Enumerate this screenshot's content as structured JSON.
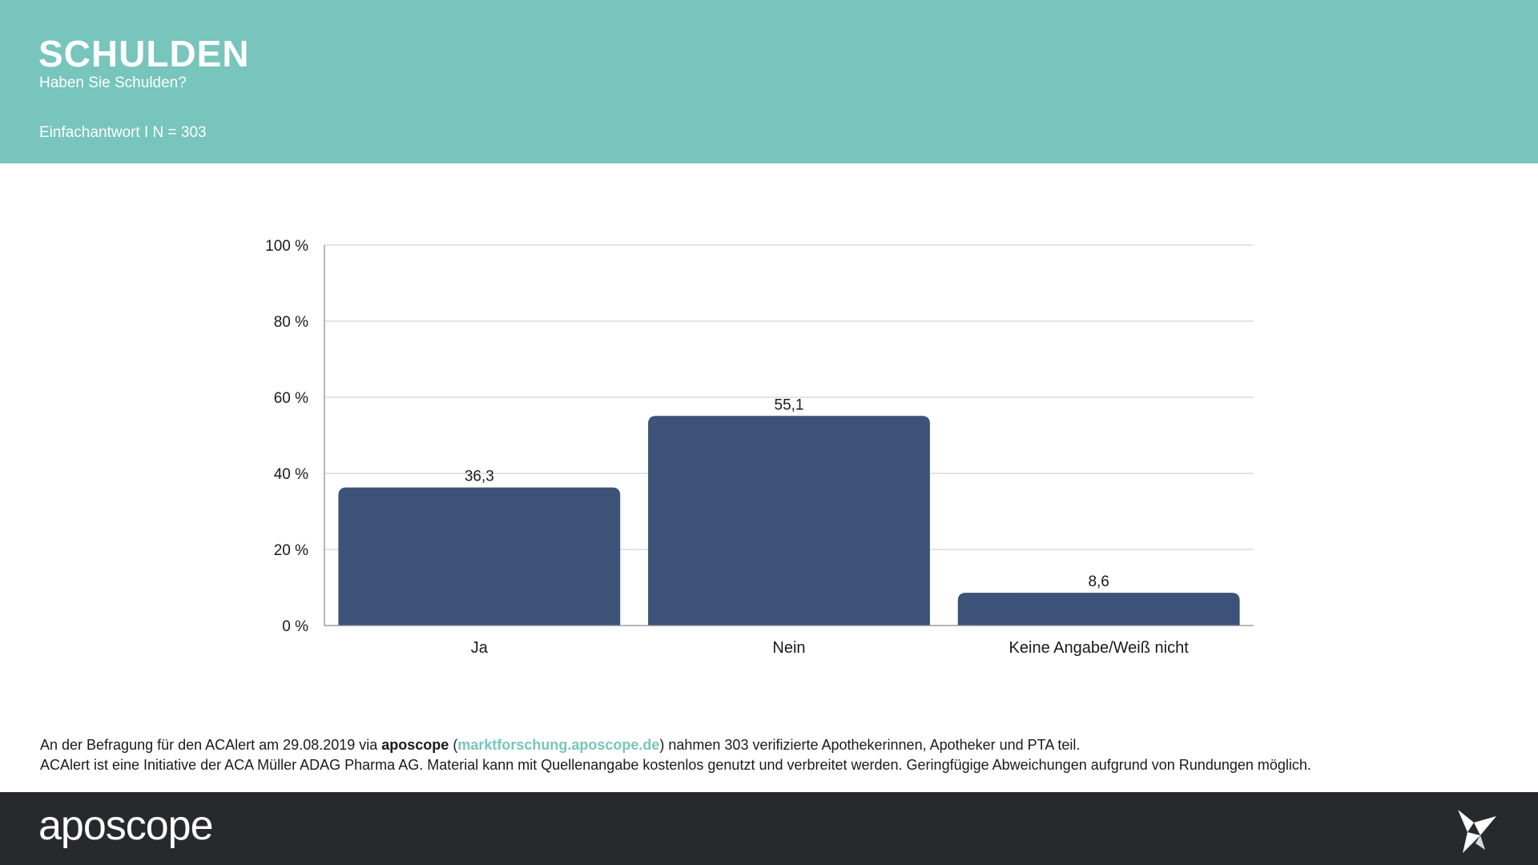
{
  "header": {
    "title": "SCHULDEN",
    "subtitle": "Haben Sie Schulden?",
    "meta": "Einfachantwort I N = 303"
  },
  "chart_data": {
    "type": "bar",
    "categories": [
      "Ja",
      "Nein",
      "Keine Angabe/Weiß nicht"
    ],
    "values": [
      36.3,
      55.1,
      8.6
    ],
    "value_labels": [
      "36,3",
      "55,1",
      "8,6"
    ],
    "ylim": [
      0,
      100
    ],
    "yticks": [
      "0 %",
      "20 %",
      "40 %",
      "60 %",
      "80 %",
      "100 %"
    ],
    "ytick_values": [
      0,
      20,
      40,
      60,
      80,
      100
    ],
    "bar_color": "#3d5278",
    "grid": true
  },
  "footnote": {
    "line1_prefix": "An der Befragung für den ACAlert am 29.08.2019 via ",
    "line1_brand": "aposcope",
    "line1_open": " (",
    "line1_link": "marktforschung.aposcope.de",
    "line1_suffix": ") nahmen 303 verifizierte Apothekerinnen, Apotheker und PTA teil.",
    "line2": "ACAlert ist eine Initiative der ACA Müller ADAG Pharma AG. Material kann mit Quellenangabe kostenlos genutzt und verbreitet werden. Geringfügige Abweichungen aufgrund von Rundungen möglich."
  },
  "footer": {
    "logo": "aposcope",
    "icon": "origami-bird-icon"
  },
  "colors": {
    "header_bg": "#77c5bc",
    "footer_bg": "#28292d",
    "bar": "#3d5278",
    "link": "#77c5bc"
  }
}
